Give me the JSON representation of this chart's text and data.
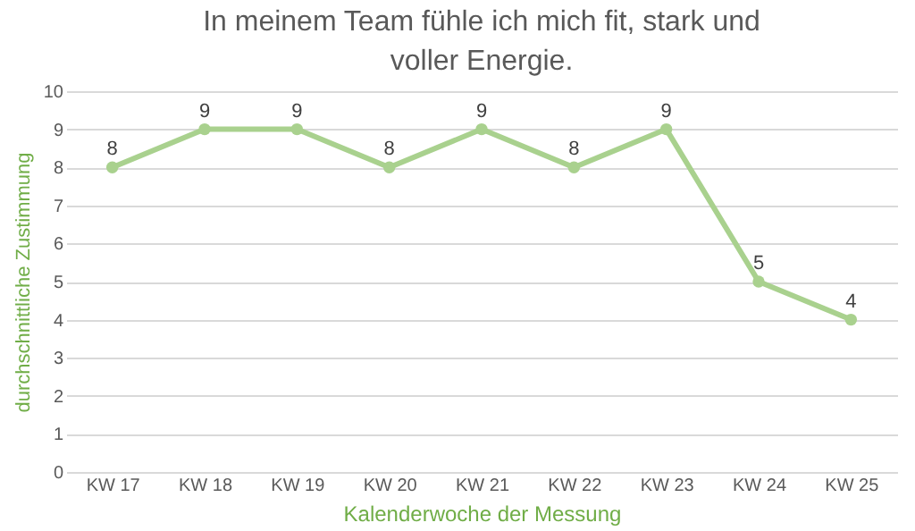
{
  "chart_data": {
    "type": "line",
    "title": "In meinem Team fühle ich mich fit, stark und voller Energie.",
    "xlabel": "Kalenderwoche der Messung",
    "ylabel": "durchschnittliche Zustimmung",
    "categories": [
      "KW 17",
      "KW 18",
      "KW 19",
      "KW 20",
      "KW 21",
      "KW 22",
      "KW 23",
      "KW 24",
      "KW 25"
    ],
    "series": [
      {
        "color": "#a9d18e",
        "values": [
          8,
          9,
          9,
          8,
          9,
          8,
          9,
          5,
          4
        ]
      }
    ],
    "ylim": [
      0,
      10
    ],
    "yticks": [
      0,
      1,
      2,
      3,
      4,
      5,
      6,
      7,
      8,
      9,
      10
    ],
    "grid": "y",
    "marker": "circle",
    "line_style": "solid",
    "data_labels": true,
    "legend": false
  }
}
